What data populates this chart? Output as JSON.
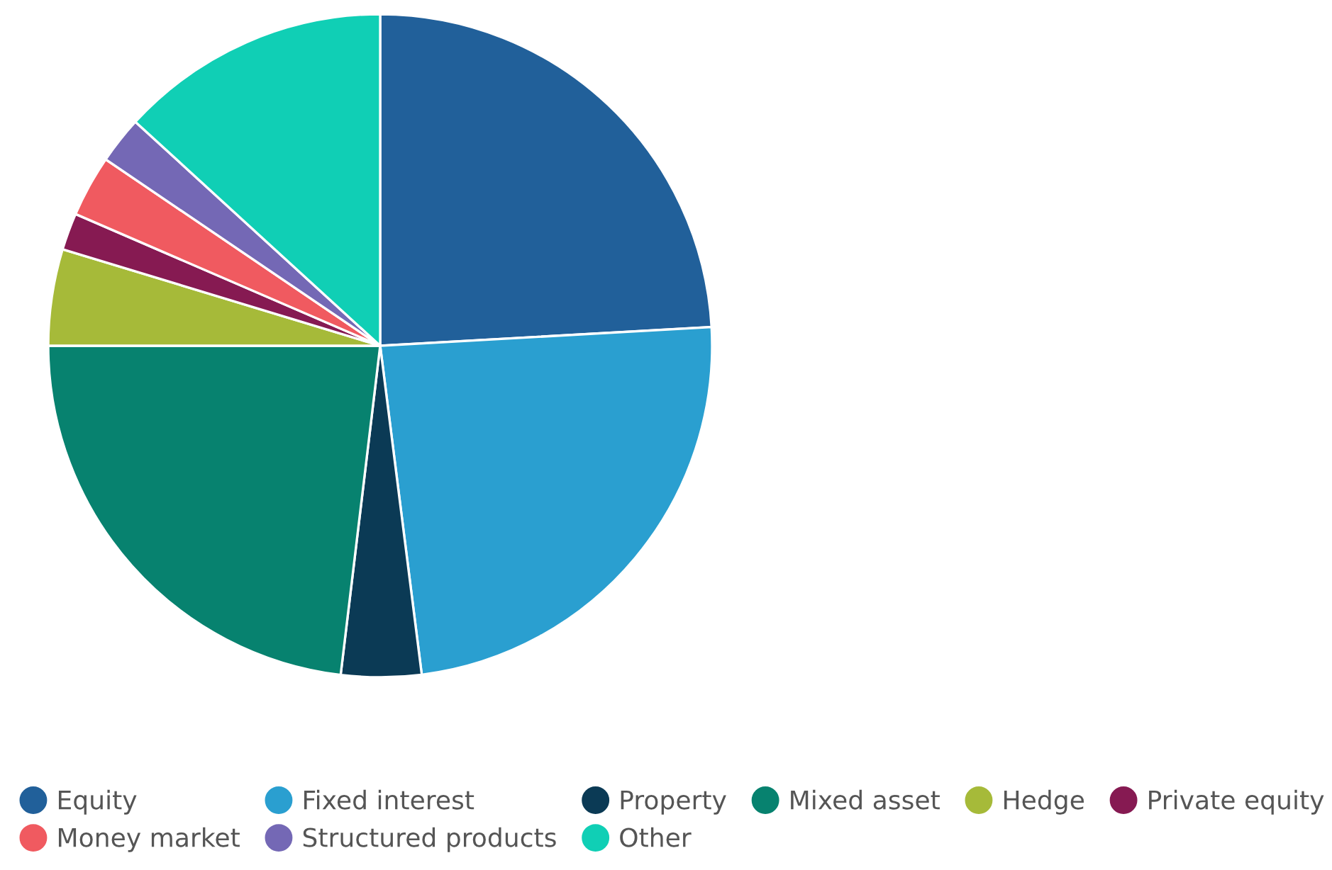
{
  "chart_data": {
    "type": "pie",
    "categories": [
      "Equity",
      "Fixed interest",
      "Property",
      "Mixed asset",
      "Hedge",
      "Private equity",
      "Money market",
      "Structured products",
      "Other"
    ],
    "values": [
      24.1,
      23.9,
      3.9,
      23.1,
      4.7,
      1.8,
      3.0,
      2.3,
      13.2
    ],
    "colors": [
      "#21609a",
      "#2a9fd0",
      "#0b3a55",
      "#07826f",
      "#a6ba39",
      "#861a52",
      "#f05a60",
      "#7468b5",
      "#10cfb5"
    ],
    "legend": "bottom"
  }
}
